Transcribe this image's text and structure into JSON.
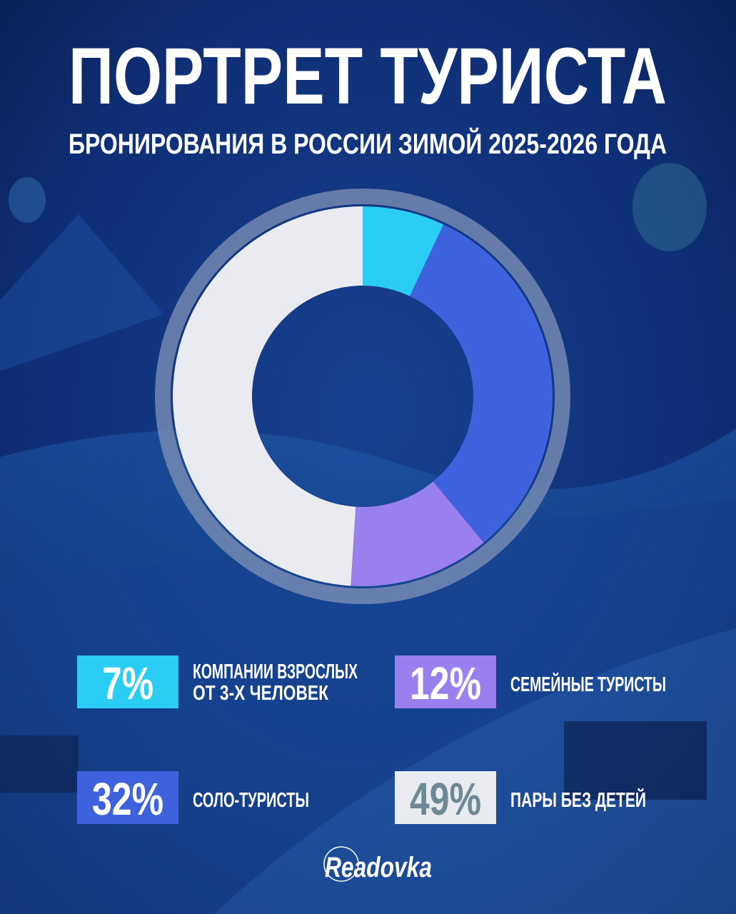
{
  "header": {
    "title": "ПОРТРЕТ ТУРИСТА",
    "subtitle": "БРОНИРОВАНИЯ В РОССИИ ЗИМОЙ 2025-2026 ГОДА"
  },
  "chart_data": {
    "type": "pie",
    "variant": "donut",
    "start": "12 o'clock, clockwise",
    "title": "ПОРТРЕТ ТУРИСТА",
    "subtitle": "БРОНИРОВАНИЯ В РОССИИ ЗИМОЙ 2025-2026 ГОДА",
    "slices": [
      {
        "label": "КОМПАНИИ ВЗРОСЛЫХ ОТ 3-Х ЧЕЛОВЕК",
        "label_lines": [
          "КОМПАНИИ ВЗРОСЛЫХ",
          "ОТ 3-Х ЧЕЛОВЕК"
        ],
        "value": 7,
        "value_label": "7%",
        "color": "#2ccdf4",
        "text_color": "#ffffff"
      },
      {
        "label": "СОЛО-ТУРИСТЫ",
        "label_lines": [
          "СОЛО-ТУРИСТЫ"
        ],
        "value": 32,
        "value_label": "32%",
        "color": "#3e62de",
        "text_color": "#ffffff"
      },
      {
        "label": "СЕМЕЙНЫЕ ТУРИСТЫ",
        "label_lines": [
          "СЕМЕЙНЫЕ ТУРИСТЫ"
        ],
        "value": 12,
        "value_label": "12%",
        "color": "#9a80ee",
        "text_color": "#ffffff"
      },
      {
        "label": "ПАРЫ БЕЗ ДЕТЕЙ",
        "label_lines": [
          "ПАРЫ БЕЗ ДЕТЕЙ"
        ],
        "value": 49,
        "value_label": "49%",
        "color": "#e9ebf0",
        "text_color": "#6e8894"
      }
    ],
    "legend": "bottom, 2x2 grid"
  },
  "brand": {
    "logo_text": "Readovka"
  },
  "colors": {
    "background": "#0b2461",
    "ring": "#7f93b8"
  }
}
